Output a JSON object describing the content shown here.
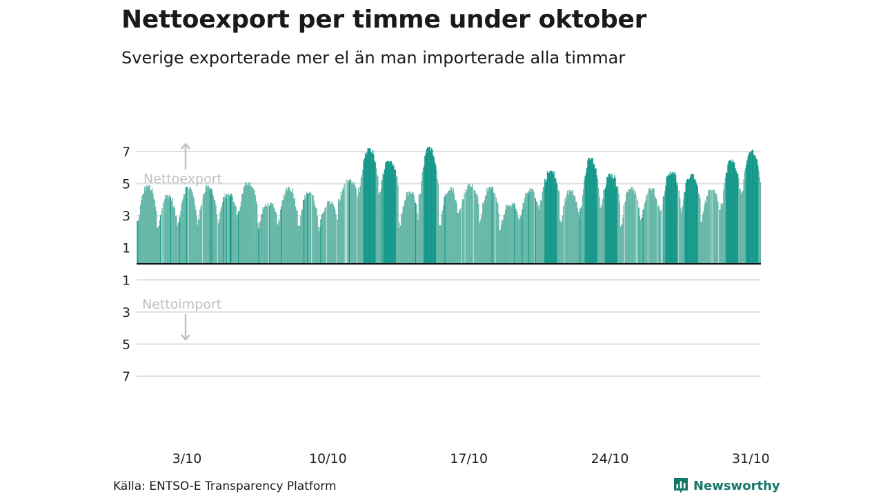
{
  "title": "Nettoexport per timme under oktober",
  "subtitle": "Sverige exporterade mer el än man importerade alla timmar",
  "source": "Källa: ENTSO-E Transparency Platform",
  "brand": "Newsworthy",
  "colors": {
    "bar_base": "#66b7a8",
    "bar_dark": "#13988a",
    "bar_light": "#b6dcd4",
    "grid": "#dedede",
    "zero_line": "#111111",
    "annotation": "#bfbfc6",
    "brand": "#15776a"
  },
  "chart_data": {
    "type": "bar",
    "x_unit": "hour",
    "x_range": [
      "1/10 00:00",
      "31/10 23:00"
    ],
    "ylim": [
      -7.5,
      7.5
    ],
    "ytick_values": [
      7,
      5,
      3,
      1,
      -1,
      -3,
      -5,
      -7
    ],
    "ytick_labels": [
      "7",
      "5",
      "3",
      "1",
      "1",
      "3",
      "5",
      "7"
    ],
    "x_ticks": [
      "3/10",
      "10/10",
      "17/10",
      "24/10",
      "31/10"
    ],
    "positive_direction_label": "Nettoexport",
    "negative_direction_label": "Nettoimport",
    "daily_net_export": [
      {
        "date": "1/10",
        "min": 2.6,
        "max": 4.9
      },
      {
        "date": "2/10",
        "min": 2.2,
        "max": 4.3
      },
      {
        "date": "3/10",
        "min": 2.5,
        "max": 4.8
      },
      {
        "date": "4/10",
        "min": 2.6,
        "max": 4.9
      },
      {
        "date": "5/10",
        "min": 2.7,
        "max": 4.4
      },
      {
        "date": "6/10",
        "min": 3.2,
        "max": 5.1
      },
      {
        "date": "7/10",
        "min": 2.4,
        "max": 3.8
      },
      {
        "date": "8/10",
        "min": 2.6,
        "max": 4.8
      },
      {
        "date": "9/10",
        "min": 2.5,
        "max": 4.5
      },
      {
        "date": "10/10",
        "min": 2.1,
        "max": 3.9
      },
      {
        "date": "11/10",
        "min": 3.9,
        "max": 5.3
      },
      {
        "date": "12/10",
        "min": 4.6,
        "max": 7.2
      },
      {
        "date": "13/10",
        "min": 4.4,
        "max": 6.4
      },
      {
        "date": "14/10",
        "min": 2.4,
        "max": 4.5
      },
      {
        "date": "15/10",
        "min": 4.2,
        "max": 7.3
      },
      {
        "date": "16/10",
        "min": 2.4,
        "max": 4.8
      },
      {
        "date": "17/10",
        "min": 3.3,
        "max": 5.0
      },
      {
        "date": "18/10",
        "min": 2.7,
        "max": 4.8
      },
      {
        "date": "19/10",
        "min": 2.3,
        "max": 3.8
      },
      {
        "date": "20/10",
        "min": 2.8,
        "max": 4.7
      },
      {
        "date": "21/10",
        "min": 3.9,
        "max": 5.8
      },
      {
        "date": "22/10",
        "min": 2.6,
        "max": 4.6
      },
      {
        "date": "23/10",
        "min": 3.4,
        "max": 6.6
      },
      {
        "date": "24/10",
        "min": 3.5,
        "max": 5.6
      },
      {
        "date": "25/10",
        "min": 2.5,
        "max": 4.8
      },
      {
        "date": "26/10",
        "min": 2.7,
        "max": 4.7
      },
      {
        "date": "27/10",
        "min": 3.5,
        "max": 5.8
      },
      {
        "date": "28/10",
        "min": 3.3,
        "max": 5.6
      },
      {
        "date": "29/10",
        "min": 2.8,
        "max": 4.6
      },
      {
        "date": "30/10",
        "min": 3.7,
        "max": 6.5
      },
      {
        "date": "31/10",
        "min": 4.4,
        "max": 7.1
      }
    ]
  }
}
